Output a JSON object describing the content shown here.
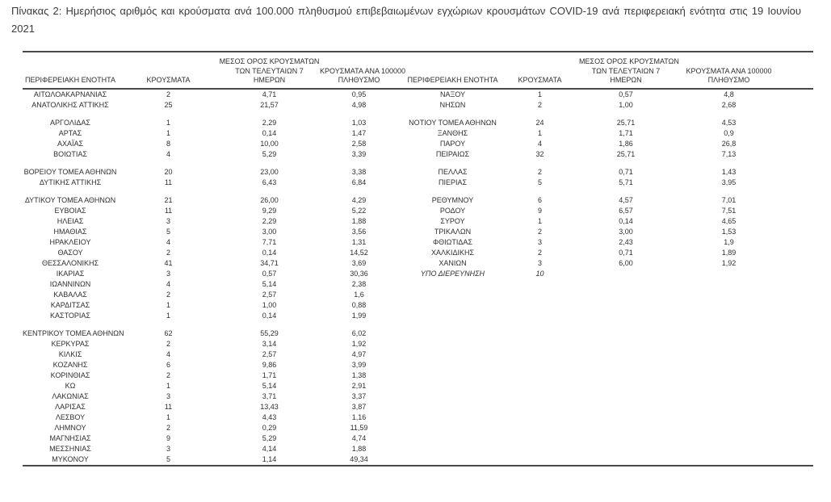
{
  "page": {
    "title": "Πίνακας 2: Ημερήσιος αριθμός και κρούσματα ανά 100.000 πληθυσμού επιβεβαιωμένων εγχώριων κρουσμάτων COVID-19 ανά περιφερειακή ενότητα στις 19 Ιουνίου 2021"
  },
  "colors": {
    "background": "#ffffff",
    "text": "#2f2f2f",
    "title_text": "#3b3b3b",
    "border": "#4a4a4a"
  },
  "table": {
    "headers": {
      "region": "ΠΕΡΙΦΕΡΕΙΑΚΗ ΕΝΟΤΗΤΑ",
      "cases": "ΚΡΟΥΣΜΑΤΑ",
      "avg7_line1": "ΜΕΣΟΣ ΟΡΟΣ ΚΡΟΥΣΜΑΤΩΝ",
      "avg7_line2": "ΤΩΝ ΤΕΛΕΥΤΑΙΩΝ 7",
      "avg7_line3": "ΗΜΕΡΩΝ",
      "per100k_line1": "ΚΡΟΥΣΜΑΤΑ ΑΝΑ 100000",
      "per100k_line2": "ΠΛΗΘΥΣΜΟ"
    },
    "rows": [
      {
        "cells": [
          "ΑΙΤΩΛΟΑΚΑΡΝΑΝΙΑΣ",
          "2",
          "4,71",
          "0,95",
          "ΝΑΞΟΥ",
          "1",
          "0,57",
          "4,8"
        ]
      },
      {
        "cells": [
          "ΑΝΑΤΟΛΙΚΗΣ ΑΤΤΙΚΗΣ",
          "25",
          "21,57",
          "4,98",
          "ΝΗΣΩΝ",
          "2",
          "1,00",
          "2,68"
        ]
      },
      {
        "blank": true
      },
      {
        "cells": [
          "ΑΡΓΟΛΙΔΑΣ",
          "1",
          "2,29",
          "1,03",
          "ΝΟΤΙΟΥ ΤΟΜΕΑ ΑΘΗΝΩΝ",
          "24",
          "25,71",
          "4,53"
        ]
      },
      {
        "cells": [
          "ΑΡΤΑΣ",
          "1",
          "0,14",
          "1,47",
          "ΞΑΝΘΗΣ",
          "1",
          "1,71",
          "0,9"
        ]
      },
      {
        "cells": [
          "ΑΧΑΪΑΣ",
          "8",
          "10,00",
          "2,58",
          "ΠΑΡΟΥ",
          "4",
          "1,86",
          "26,8"
        ]
      },
      {
        "cells": [
          "ΒΟΙΩΤΙΑΣ",
          "4",
          "5,29",
          "3,39",
          "ΠΕΙΡΑΙΩΣ",
          "32",
          "25,71",
          "7,13"
        ]
      },
      {
        "blank": true
      },
      {
        "cells": [
          "ΒΟΡΕΙΟΥ ΤΟΜΕΑ ΑΘΗΝΩΝ",
          "20",
          "23,00",
          "3,38",
          "ΠΕΛΛΑΣ",
          "2",
          "0,71",
          "1,43"
        ]
      },
      {
        "cells": [
          "ΔΥΤΙΚΗΣ ΑΤΤΙΚΗΣ",
          "11",
          "6,43",
          "6,84",
          "ΠΙΕΡΙΑΣ",
          "5",
          "5,71",
          "3,95"
        ]
      },
      {
        "blank": true
      },
      {
        "cells": [
          "ΔΥΤΙΚΟΥ ΤΟΜΕΑ ΑΘΗΝΩΝ",
          "21",
          "26,00",
          "4,29",
          "ΡΕΘΥΜΝΟΥ",
          "6",
          "4,57",
          "7,01"
        ]
      },
      {
        "cells": [
          "ΕΥΒΟΙΑΣ",
          "11",
          "9,29",
          "5,22",
          "ΡΟΔΟΥ",
          "9",
          "6,57",
          "7,51"
        ]
      },
      {
        "cells": [
          "ΗΛΕΙΑΣ",
          "3",
          "2,29",
          "1,88",
          "ΣΥΡΟΥ",
          "1",
          "0,14",
          "4,65"
        ]
      },
      {
        "cells": [
          "ΗΜΑΘΙΑΣ",
          "5",
          "3,00",
          "3,56",
          "ΤΡΙΚΑΛΩΝ",
          "2",
          "3,00",
          "1,53"
        ]
      },
      {
        "cells": [
          "ΗΡΑΚΛΕΙΟΥ",
          "4",
          "7,71",
          "1,31",
          "ΦΘΙΩΤΙΔΑΣ",
          "3",
          "2,43",
          "1,9"
        ]
      },
      {
        "cells": [
          "ΘΑΣΟΥ",
          "2",
          "0,14",
          "14,52",
          "ΧΑΛΚΙΔΙΚΗΣ",
          "2",
          "0,71",
          "1,89"
        ]
      },
      {
        "cells": [
          "ΘΕΣΣΑΛΟΝΙΚΗΣ",
          "41",
          "34,71",
          "3,69",
          "ΧΑΝΙΩΝ",
          "3",
          "6,00",
          "1,92"
        ]
      },
      {
        "cells": [
          "ΙΚΑΡΙΑΣ",
          "3",
          "0,57",
          "30,36",
          "ΥΠΟ ΔΙΕΡΕΥΝΗΣΗ",
          "10",
          "",
          ""
        ],
        "right_italic": true
      },
      {
        "cells": [
          "ΙΩΑΝΝΙΝΩΝ",
          "4",
          "5,14",
          "2,38",
          "",
          "",
          "",
          ""
        ]
      },
      {
        "cells": [
          "ΚΑΒΑΛΑΣ",
          "2",
          "2,57",
          "1,6",
          "",
          "",
          "",
          ""
        ]
      },
      {
        "cells": [
          "ΚΑΡΔΙΤΣΑΣ",
          "1",
          "1,00",
          "0,88",
          "",
          "",
          "",
          ""
        ]
      },
      {
        "cells": [
          "ΚΑΣΤΟΡΙΑΣ",
          "1",
          "0,14",
          "1,99",
          "",
          "",
          "",
          ""
        ]
      },
      {
        "blank": true
      },
      {
        "cells": [
          "ΚΕΝΤΡΙΚΟΥ ΤΟΜΕΑ ΑΘΗΝΩΝ",
          "62",
          "55,29",
          "6,02",
          "",
          "",
          "",
          ""
        ]
      },
      {
        "cells": [
          "ΚΕΡΚΥΡΑΣ",
          "2",
          "3,14",
          "1,92",
          "",
          "",
          "",
          ""
        ]
      },
      {
        "cells": [
          "ΚΙΛΚΙΣ",
          "4",
          "2,57",
          "4,97",
          "",
          "",
          "",
          ""
        ]
      },
      {
        "cells": [
          "ΚΟΖΑΝΗΣ",
          "6",
          "9,86",
          "3,99",
          "",
          "",
          "",
          ""
        ]
      },
      {
        "cells": [
          "ΚΟΡΙΝΘΙΑΣ",
          "2",
          "1,71",
          "1,38",
          "",
          "",
          "",
          ""
        ]
      },
      {
        "cells": [
          "ΚΩ",
          "1",
          "5,14",
          "2,91",
          "",
          "",
          "",
          ""
        ]
      },
      {
        "cells": [
          "ΛΑΚΩΝΙΑΣ",
          "3",
          "3,71",
          "3,37",
          "",
          "",
          "",
          ""
        ]
      },
      {
        "cells": [
          "ΛΑΡΙΣΑΣ",
          "11",
          "13,43",
          "3,87",
          "",
          "",
          "",
          ""
        ]
      },
      {
        "cells": [
          "ΛΕΣΒΟΥ",
          "1",
          "4,43",
          "1,16",
          "",
          "",
          "",
          ""
        ]
      },
      {
        "cells": [
          "ΛΗΜΝΟΥ",
          "2",
          "0,29",
          "11,59",
          "",
          "",
          "",
          ""
        ]
      },
      {
        "cells": [
          "ΜΑΓΝΗΣΙΑΣ",
          "9",
          "5,29",
          "4,74",
          "",
          "",
          "",
          ""
        ]
      },
      {
        "cells": [
          "ΜΕΣΣΗΝΙΑΣ",
          "3",
          "4,14",
          "1,88",
          "",
          "",
          "",
          ""
        ]
      },
      {
        "cells": [
          "ΜΥΚΟΝΟΥ",
          "5",
          "1,14",
          "49,34",
          "",
          "",
          "",
          ""
        ]
      }
    ]
  }
}
